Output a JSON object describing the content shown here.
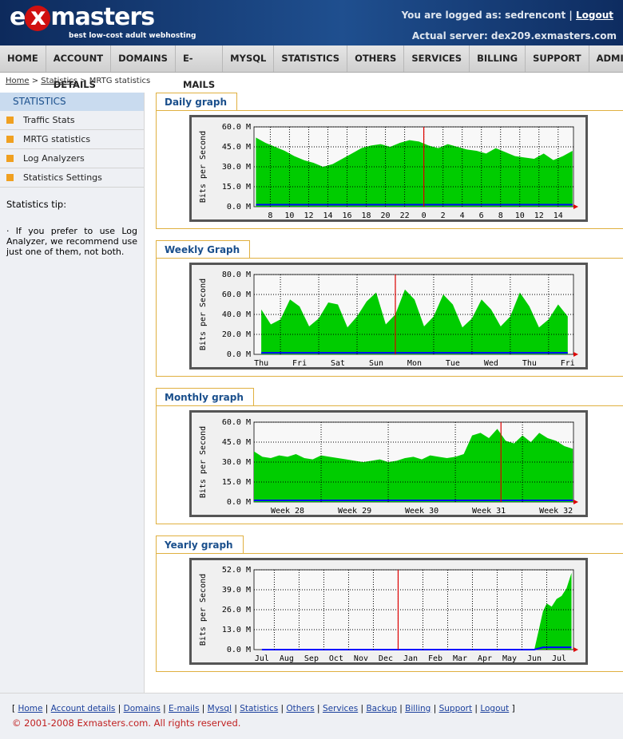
{
  "header": {
    "logo": [
      "e",
      "x",
      "masters"
    ],
    "tagline": "best low-cost adult webhosting",
    "logged": "You are logged as: sedrencont",
    "logout": "Logout",
    "server": "Actual server: dex209.exmasters.com"
  },
  "nav": [
    "HOME",
    "ACCOUNT DETAILS",
    "DOMAINS",
    "E-MAILS",
    "MYSQL",
    "STATISTICS",
    "OTHERS",
    "SERVICES",
    "BILLING",
    "SUPPORT",
    "ADMIN"
  ],
  "breadcrumb": {
    "links": [
      "Home",
      "Statistics"
    ],
    "current": "MRTG statistics"
  },
  "sidebar": {
    "title": "STATISTICS",
    "items": [
      "Traffic Stats",
      "MRTG statistics",
      "Log Analyzers",
      "Statistics Settings"
    ],
    "tip_title": "Statistics tip:",
    "tip": "· If you prefer to use Log Analyzer, we recommend use just one of them, not both."
  },
  "chart_data": [
    {
      "type": "area",
      "title": "Daily graph",
      "y_label": "Bits per Second",
      "x": [
        6.5,
        7.5,
        8.5,
        9.5,
        10.5,
        11.5,
        12.5,
        13.5,
        14.5,
        15.5,
        16.5,
        17.5,
        18.5,
        19.5,
        20.5,
        21.5,
        22.5,
        23.5,
        24.5,
        25.5,
        26.5,
        27.5,
        28.5,
        29.5,
        30.5,
        31.5,
        32.5,
        33.5,
        34.5,
        35.5,
        36.5,
        37.5,
        38.5,
        39.5
      ],
      "series": [
        {
          "color": "#00cc00",
          "values": [
            52,
            48,
            45,
            42,
            38,
            35,
            33,
            30,
            32,
            36,
            40,
            44,
            46,
            47,
            45,
            48,
            50,
            49,
            46,
            44,
            47,
            45,
            43,
            42,
            40,
            44,
            41,
            38,
            37,
            36,
            40,
            35,
            38,
            42
          ]
        },
        {
          "color": "#0000ff",
          "values": [
            1.5,
            1.5,
            1.5,
            1.5,
            1.5,
            1.5,
            1.5,
            1.5,
            1.5,
            1.5,
            1.5,
            1.5,
            1.5,
            1.5,
            1.5,
            1.5,
            1.5,
            1.5,
            1.5,
            1.5,
            1.5,
            1.5,
            1.5,
            1.5,
            1.5,
            1.5,
            1.5,
            1.5,
            1.5,
            1.5,
            1.5,
            1.5,
            1.5,
            1.5
          ]
        }
      ],
      "xlim": [
        6.3,
        39.6
      ],
      "xticks": [
        8,
        10,
        12,
        14,
        16,
        18,
        20,
        22,
        {
          "value": 24,
          "label": "0"
        },
        {
          "value": 26,
          "label": "2"
        },
        {
          "value": 28,
          "label": "4"
        },
        {
          "value": 30,
          "label": "6"
        },
        {
          "value": 32,
          "label": "8"
        },
        {
          "value": 34,
          "label": "10"
        },
        {
          "value": 36,
          "label": "12"
        },
        {
          "value": 38,
          "label": "14"
        }
      ],
      "ylim": [
        0,
        60
      ],
      "yticks": [
        {
          "value": 0,
          "label": "0.0 M"
        },
        {
          "value": 15,
          "label": "15.0 M"
        },
        {
          "value": 30,
          "label": "30.0 M"
        },
        {
          "value": 45,
          "label": "45.0 M"
        },
        {
          "value": 60,
          "label": "60.0 M"
        }
      ],
      "grid": true,
      "tick_labels": "on",
      "marker": {
        "x": 24,
        "color": "#dd0000"
      }
    },
    {
      "type": "area",
      "title": "Weekly Graph",
      "y_label": "Bits per Second",
      "x": [
        0.5,
        0.75,
        1,
        1.25,
        1.5,
        1.75,
        2,
        2.25,
        2.5,
        2.75,
        3,
        3.25,
        3.5,
        3.75,
        4,
        4.25,
        4.5,
        4.75,
        5,
        5.25,
        5.5,
        5.75,
        6,
        6.25,
        6.5,
        6.75,
        7,
        7.25,
        7.5,
        7.75,
        8,
        8.25,
        8.5
      ],
      "series": [
        {
          "color": "#00cc00",
          "values": [
            45,
            30,
            35,
            55,
            48,
            28,
            36,
            52,
            50,
            27,
            38,
            53,
            62,
            30,
            40,
            65,
            55,
            28,
            38,
            60,
            50,
            27,
            36,
            55,
            45,
            28,
            38,
            62,
            48,
            27,
            35,
            50,
            38
          ]
        },
        {
          "color": "#0000ff",
          "values": [
            1.5,
            1.5,
            1.5,
            1.5,
            1.5,
            1.5,
            1.5,
            1.5,
            1.5,
            1.5,
            1.5,
            1.5,
            1.5,
            1.5,
            1.5,
            1.5,
            1.5,
            1.5,
            1.5,
            1.5,
            1.5,
            1.5,
            1.5,
            1.5,
            1.5,
            1.5,
            1.5,
            1.5,
            1.5,
            1.5,
            1.5,
            1.5,
            1.5
          ]
        }
      ],
      "xlim": [
        0.31,
        8.65
      ],
      "xticks": [
        {
          "value": 0.5,
          "label": "Thu"
        },
        {
          "value": 1.5,
          "label": "Fri"
        },
        {
          "value": 2.5,
          "label": "Sat"
        },
        {
          "value": 3.5,
          "label": "Sun"
        },
        {
          "value": 4.5,
          "label": "Mon"
        },
        {
          "value": 5.5,
          "label": "Tue"
        },
        {
          "value": 6.5,
          "label": "Wed"
        },
        {
          "value": 7.5,
          "label": "Thu"
        },
        {
          "value": 8.5,
          "label": "Fri"
        }
      ],
      "ylim": [
        0,
        80
      ],
      "yticks": [
        {
          "value": 0,
          "label": "0.0 M"
        },
        {
          "value": 20,
          "label": "20.0 M"
        },
        {
          "value": 40,
          "label": "40.0 M"
        },
        {
          "value": 60,
          "label": "60.0 M"
        },
        {
          "value": 80,
          "label": "80.0 M"
        }
      ],
      "grid": true,
      "tick_labels": "between",
      "marker": {
        "x": 4,
        "color": "#dd0000"
      }
    },
    {
      "type": "area",
      "title": "Monthly graph",
      "y_label": "Bits per Second",
      "x": [
        28,
        28.125,
        28.25,
        28.375,
        28.5,
        28.625,
        28.75,
        28.875,
        29,
        29.125,
        29.25,
        29.375,
        29.5,
        29.625,
        29.75,
        29.875,
        30,
        30.125,
        30.25,
        30.375,
        30.5,
        30.625,
        30.75,
        30.875,
        31,
        31.125,
        31.25,
        31.375,
        31.5,
        31.625,
        31.75,
        31.875,
        32,
        32.125,
        32.25,
        32.375,
        32.5,
        32.625,
        32.75
      ],
      "series": [
        {
          "color": "#00cc00",
          "values": [
            38,
            34,
            33,
            35,
            34,
            36,
            33,
            32,
            35,
            34,
            33,
            32,
            31,
            30,
            31,
            32,
            30,
            31,
            33,
            34,
            32,
            35,
            34,
            33,
            34,
            36,
            50,
            52,
            48,
            55,
            46,
            44,
            50,
            45,
            52,
            48,
            46,
            42,
            40
          ]
        },
        {
          "color": "#0000ff",
          "values": [
            1.2,
            1.2,
            1.2,
            1.2,
            1.2,
            1.2,
            1.2,
            1.2,
            1.2,
            1.2,
            1.2,
            1.2,
            1.2,
            1.2,
            1.2,
            1.2,
            1.2,
            1.2,
            1.2,
            1.2,
            1.2,
            1.2,
            1.2,
            1.2,
            1.2,
            1.2,
            1.2,
            1.2,
            1.2,
            1.2,
            1.2,
            1.2,
            1.2,
            1.2,
            1.2,
            1.2,
            1.2,
            1.2,
            1.2
          ]
        }
      ],
      "xlim": [
        28,
        32.76
      ],
      "xticks": [
        {
          "value": 28.5,
          "label": "Week 28"
        },
        {
          "value": 29.5,
          "label": "Week 29"
        },
        {
          "value": 30.5,
          "label": "Week 30"
        },
        {
          "value": 31.5,
          "label": "Week 31"
        },
        {
          "value": 32.5,
          "label": "Week 32"
        }
      ],
      "ylim": [
        0,
        60
      ],
      "yticks": [
        {
          "value": 0,
          "label": "0.0 M"
        },
        {
          "value": 15,
          "label": "15.0 M"
        },
        {
          "value": 30,
          "label": "30.0 M"
        },
        {
          "value": 45,
          "label": "45.0 M"
        },
        {
          "value": 60,
          "label": "60.0 M"
        }
      ],
      "grid": true,
      "tick_labels": "between",
      "marker": {
        "x": 31.68,
        "color": "#dd0000"
      }
    },
    {
      "type": "area",
      "title": "Yearly graph",
      "y_label": "Bits per Second",
      "x": [
        0.5,
        1.5,
        2.5,
        3.5,
        4.5,
        5.5,
        6.5,
        7.5,
        8.5,
        9.5,
        10.5,
        11.5,
        11.85,
        12,
        12.2,
        12.4,
        12.6,
        12.8,
        13
      ],
      "series": [
        {
          "color": "#00cc00",
          "values": [
            0,
            0,
            0,
            0,
            0,
            0,
            0,
            0,
            0,
            0,
            0,
            0,
            25,
            30,
            28,
            33,
            35,
            40,
            50
          ]
        },
        {
          "color": "#0000ff",
          "values": [
            0,
            0,
            0,
            0,
            0,
            0,
            0,
            0,
            0,
            0,
            0,
            0,
            1.5,
            1.5,
            1.5,
            1.5,
            1.5,
            1.5,
            1.5
          ]
        }
      ],
      "xlim": [
        0.18,
        13.08
      ],
      "xticks": [
        {
          "value": 0.5,
          "label": "Jul"
        },
        {
          "value": 1.5,
          "label": "Aug"
        },
        {
          "value": 2.5,
          "label": "Sep"
        },
        {
          "value": 3.5,
          "label": "Oct"
        },
        {
          "value": 4.5,
          "label": "Nov"
        },
        {
          "value": 5.5,
          "label": "Dec"
        },
        {
          "value": 6.5,
          "label": "Jan"
        },
        {
          "value": 7.5,
          "label": "Feb"
        },
        {
          "value": 8.5,
          "label": "Mar"
        },
        {
          "value": 9.5,
          "label": "Apr"
        },
        {
          "value": 10.5,
          "label": "May"
        },
        {
          "value": 11.5,
          "label": "Jun"
        },
        {
          "value": 12.5,
          "label": "Jul"
        }
      ],
      "ylim": [
        0,
        52
      ],
      "yticks": [
        {
          "value": 0,
          "label": "0.0 M"
        },
        {
          "value": 13,
          "label": "13.0 M"
        },
        {
          "value": 26,
          "label": "26.0 M"
        },
        {
          "value": 39,
          "label": "39.0 M"
        },
        {
          "value": 52,
          "label": "52.0 M"
        }
      ],
      "grid": true,
      "tick_labels": "between",
      "marker": {
        "x": 6,
        "color": "#dd0000"
      }
    }
  ],
  "footer": {
    "links": [
      "Home",
      "Account details",
      "Domains",
      "E-mails",
      "Mysql",
      "Statistics",
      "Others",
      "Services",
      "Backup",
      "Billing",
      "Support",
      "Logout"
    ],
    "copyright": "© 2001-2008 Exmasters.com. All rights reserved."
  }
}
